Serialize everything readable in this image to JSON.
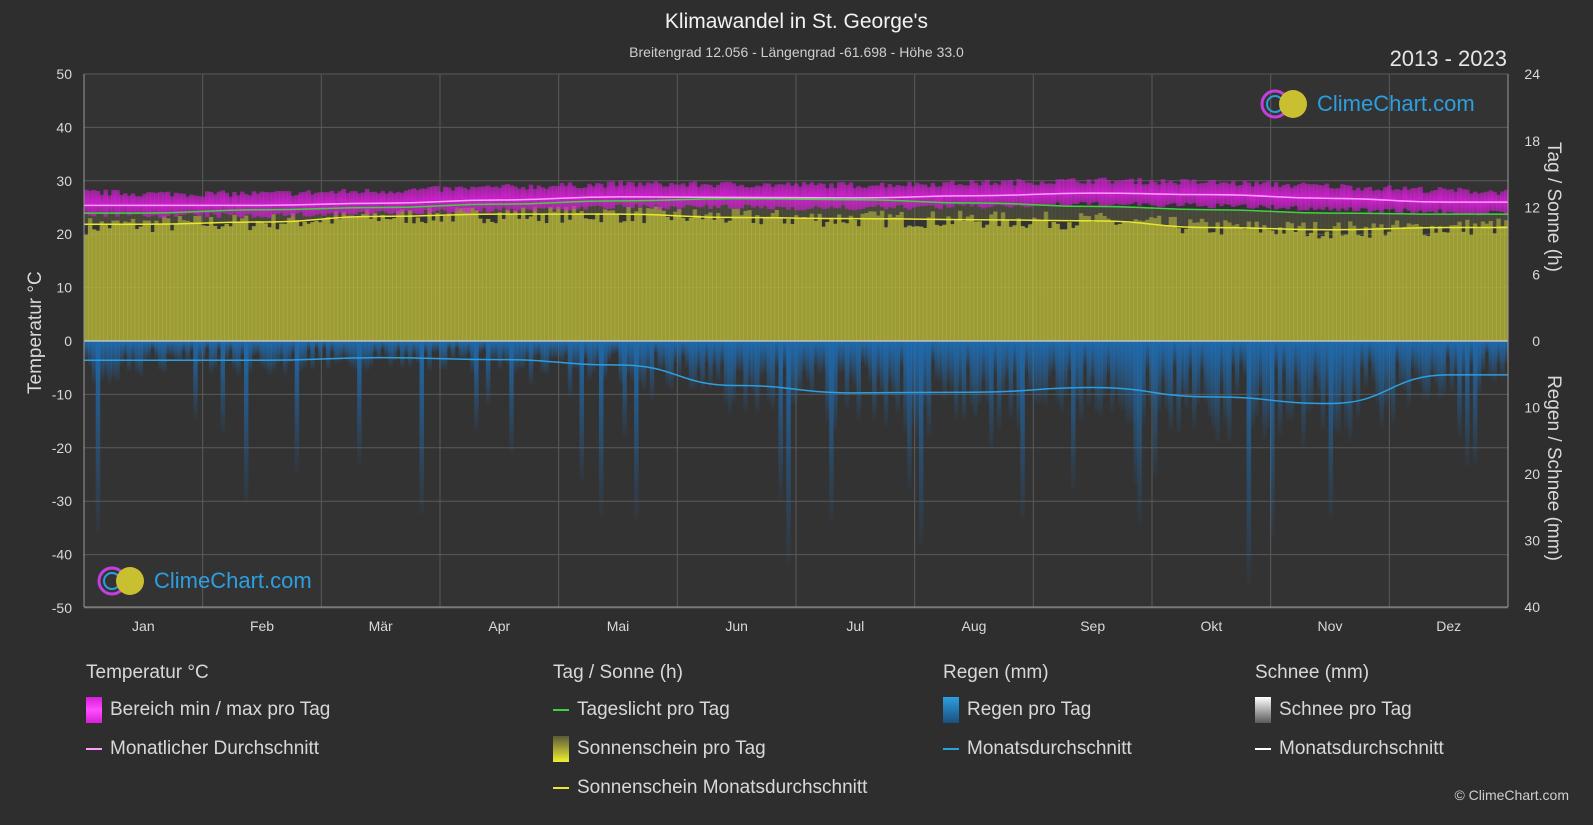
{
  "header": {
    "title": "Klimawandel in St. George's",
    "subtitle": "Breitengrad 12.056 - Längengrad -61.698 - Höhe 33.0",
    "period": "2013 - 2023"
  },
  "axes": {
    "left_title": "Temperatur °C",
    "right_top_title": "Tag / Sonne (h)",
    "right_bottom_title": "Regen / Schnee (mm)"
  },
  "legend": {
    "temperature": {
      "heading": "Temperatur °C",
      "range_label": "Bereich min / max pro Tag",
      "avg_label": "Monatlicher Durchschnitt"
    },
    "sun": {
      "heading": "Tag / Sonne (h)",
      "daylight_label": "Tageslicht pro Tag",
      "sunshine_label": "Sonnenschein pro Tag",
      "sunshine_avg_label": "Sonnenschein Monatsdurchschnitt"
    },
    "rain": {
      "heading": "Regen (mm)",
      "rain_label": "Regen pro Tag",
      "avg_label": "Monatsdurchschnitt"
    },
    "snow": {
      "heading": "Schnee (mm)",
      "snow_label": "Schnee pro Tag",
      "avg_label": "Monatsdurchschnitt"
    }
  },
  "logo_text": "ClimeChart.com",
  "copyright": "© ClimeChart.com",
  "colors": {
    "background": "#2e2e2e",
    "temp_range": "#d81ed8",
    "temp_avg": "#ff9cff",
    "daylight": "#3fd23f",
    "sunshine_fill": "#b9b93a",
    "sunshine_avg": "#e8e830",
    "rain": "#1e7fd8",
    "rain_avg": "#2c9fe0",
    "snow_avg": "#ffffff"
  },
  "chart_data": {
    "type": "area",
    "months": [
      "Jan",
      "Feb",
      "Mär",
      "Apr",
      "Mai",
      "Jun",
      "Jul",
      "Aug",
      "Sep",
      "Okt",
      "Nov",
      "Dez"
    ],
    "temp_axis": {
      "ticks": [
        50,
        40,
        30,
        20,
        10,
        0,
        -10,
        -20,
        -30,
        -40,
        -50
      ],
      "range": [
        -50,
        50
      ]
    },
    "sun_axis": {
      "ticks": [
        24,
        18,
        12,
        6,
        0
      ],
      "range": [
        0,
        24
      ]
    },
    "rain_axis": {
      "ticks": [
        0,
        10,
        20,
        30,
        40
      ],
      "range": [
        0,
        40
      ]
    },
    "series": [
      {
        "name": "Monatlicher Durchschnitt",
        "unit": "°C",
        "values": [
          25.4,
          25.4,
          25.8,
          26.4,
          27.0,
          26.9,
          26.8,
          27.2,
          27.7,
          27.4,
          26.7,
          26.0
        ]
      },
      {
        "name": "Bereich min / max pro Tag (min)",
        "unit": "°C",
        "values": [
          24.0,
          24.0,
          24.4,
          25.0,
          25.6,
          25.5,
          25.4,
          25.7,
          26.1,
          25.8,
          25.2,
          24.6
        ]
      },
      {
        "name": "Bereich min / max pro Tag (max)",
        "unit": "°C",
        "values": [
          27.0,
          27.0,
          27.5,
          28.2,
          28.8,
          28.7,
          28.6,
          29.0,
          29.5,
          29.1,
          28.4,
          27.6
        ]
      },
      {
        "name": "Tageslicht pro Tag",
        "unit": "h",
        "values": [
          11.5,
          11.8,
          12.0,
          12.3,
          12.6,
          12.8,
          12.7,
          12.4,
          12.1,
          11.8,
          11.5,
          11.4
        ]
      },
      {
        "name": "Sonnenschein Monatsdurchschnitt",
        "unit": "h",
        "values": [
          10.5,
          10.7,
          11.2,
          11.4,
          11.4,
          11.1,
          11.0,
          10.9,
          10.8,
          10.2,
          10.0,
          10.2
        ]
      },
      {
        "name": "Regen Monatsdurchschnitt",
        "unit": "mm",
        "values": [
          2.9,
          2.9,
          2.5,
          2.8,
          3.6,
          6.7,
          7.8,
          7.7,
          7.0,
          8.4,
          9.4,
          5.1
        ]
      },
      {
        "name": "Schnee Monatsdurchschnitt",
        "unit": "mm",
        "values": [
          0,
          0,
          0,
          0,
          0,
          0,
          0,
          0,
          0,
          0,
          0,
          0
        ]
      }
    ]
  }
}
